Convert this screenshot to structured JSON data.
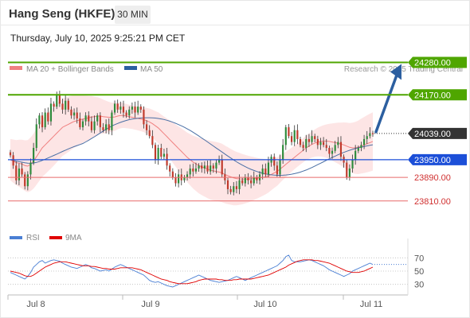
{
  "header": {
    "title": "Hang Seng (HKFE)",
    "timeframe": "30 MIN",
    "datetime": "Thursday, July 10, 2025 9:25:21 PM CET"
  },
  "colors": {
    "candle_up": "#2e8b3b",
    "candle_down": "#c0392b",
    "bollinger_fill": "#fde0e0",
    "ma20": "#f08080",
    "ma50": "#4a6fa5",
    "resistance": "#4fa600",
    "pivot": "#1c4fd8",
    "support": "#e86a6a",
    "current": "#333333",
    "arrow": "#2c5fa0",
    "rsi": "#4a7fd4",
    "rsi_ma": "#e00000"
  },
  "chart_data": {
    "type": "candlestick",
    "legend": [
      {
        "name": "MA 20 + Bollinger Bands",
        "color": "#f08080"
      },
      {
        "name": "MA 50",
        "color": "#2c5fa0"
      }
    ],
    "watermark": "Research © 2025 Trading Central",
    "x_ticks": [
      "Jul 8",
      "Jul 9",
      "Jul 10",
      "Jul 11"
    ],
    "ylim": [
      23750,
      24330
    ],
    "levels": [
      {
        "label": "24280.00",
        "value": 24280,
        "kind": "resistance"
      },
      {
        "label": "24170.00",
        "value": 24170,
        "kind": "resistance"
      },
      {
        "label": "24039.00",
        "value": 24039,
        "kind": "current"
      },
      {
        "label": "23950.00",
        "value": 23950,
        "kind": "pivot"
      },
      {
        "label": "23890.00",
        "value": 23890,
        "kind": "support"
      },
      {
        "label": "23810.00",
        "value": 23810,
        "kind": "support"
      }
    ],
    "close": [
      23965,
      23930,
      23880,
      23920,
      23900,
      23860,
      23900,
      23940,
      23990,
      24070,
      24100,
      24060,
      24110,
      24080,
      24140,
      24130,
      24170,
      24140,
      24120,
      24150,
      24120,
      24100,
      24110,
      24090,
      24060,
      24080,
      24100,
      24080,
      24050,
      24080,
      24100,
      24060,
      24050,
      24070,
      24050,
      24110,
      24140,
      24120,
      24130,
      24110,
      24100,
      24120,
      24130,
      24110,
      24130,
      24120,
      24070,
      24050,
      24030,
      24000,
      23950,
      23990,
      23960,
      23970,
      23930,
      23910,
      23890,
      23870,
      23900,
      23880,
      23890,
      23900,
      23920,
      23910,
      23920,
      23930,
      23920,
      23930,
      23910,
      23930,
      23920,
      23940,
      23950,
      23900,
      23880,
      23850,
      23840,
      23860,
      23850,
      23880,
      23870,
      23890,
      23880,
      23870,
      23890,
      23880,
      23900,
      23920,
      23900,
      23940,
      23960,
      23930,
      23900,
      23950,
      24000,
      24060,
      24030,
      24010,
      24050,
      24020,
      24000,
      23990,
      24020,
      24010,
      24030,
      24020,
      24000,
      24010,
      24000,
      23990,
      23970,
      23980,
      24000,
      24010,
      23960,
      23940,
      23890,
      23920,
      23950,
      23980,
      23990,
      24000,
      24020,
      24030,
      24040,
      24039
    ],
    "ma20": [
      23950,
      23945,
      23940,
      23938,
      23935,
      23930,
      23928,
      23935,
      23945,
      23960,
      23975,
      23990,
      24000,
      24010,
      24020,
      24030,
      24040,
      24050,
      24060,
      24065,
      24070,
      24075,
      24080,
      24082,
      24085,
      24088,
      24090,
      24092,
      24095,
      24096,
      24098,
      24098,
      24096,
      24095,
      24094,
      24094,
      24095,
      24098,
      24100,
      24100,
      24098,
      24096,
      24094,
      24092,
      24090,
      24088,
      24086,
      24082,
      24078,
      24072,
      24065,
      24058,
      24048,
      24038,
      24028,
      24018,
      24008,
      23998,
      23988,
      23978,
      23968,
      23958,
      23950,
      23942,
      23936,
      23930,
      23926,
      23922,
      23918,
      23914,
      23912,
      23910,
      23908,
      23905,
      23900,
      23896,
      23892,
      23888,
      23886,
      23885,
      23884,
      23884,
      23884,
      23885,
      23886,
      23887,
      23888,
      23890,
      23892,
      23895,
      23900,
      23905,
      23910,
      23918,
      23926,
      23934,
      23942,
      23950,
      23958,
      23966,
      23974,
      23982,
      23990,
      23996,
      24002,
      24006,
      24010,
      24012,
      24013,
      24013,
      24012,
      24010,
      24008,
      24006,
      24003,
      24000,
      23996,
      23992,
      23990,
      23990,
      23992,
      23996,
      24000,
      24004,
      24008,
      24012
    ]
  },
  "rsi": {
    "legend": [
      {
        "name": "RSI",
        "color": "#4a7fd4"
      },
      {
        "name": "9MA",
        "color": "#e00000"
      }
    ],
    "ticks": [
      "70",
      "50",
      "30"
    ],
    "ylim": [
      20,
      80
    ],
    "values": [
      48,
      46,
      44,
      42,
      40,
      38,
      42,
      48,
      56,
      60,
      64,
      66,
      62,
      64,
      66,
      67,
      66,
      65,
      62,
      60,
      58,
      56,
      55,
      54,
      56,
      58,
      60,
      58,
      55,
      54,
      52,
      50,
      51,
      52,
      50,
      53,
      56,
      58,
      60,
      58,
      56,
      54,
      52,
      50,
      48,
      46,
      44,
      40,
      36,
      34,
      33,
      34,
      32,
      30,
      28,
      27,
      26,
      28,
      30,
      32,
      34,
      36,
      38,
      40,
      42,
      44,
      42,
      40,
      38,
      36,
      35,
      34,
      33,
      34,
      35,
      36,
      38,
      40,
      42,
      40,
      38,
      36,
      38,
      40,
      42,
      44,
      46,
      48,
      50,
      52,
      54,
      56,
      58,
      62,
      66,
      72,
      74,
      66,
      64,
      64,
      64,
      65,
      66,
      67,
      66,
      64,
      62,
      60,
      58,
      55,
      52,
      50,
      48,
      46,
      44,
      42,
      44,
      46,
      50,
      52,
      54,
      56,
      58,
      60,
      62,
      60
    ],
    "ma": [
      50,
      49,
      48,
      47,
      45,
      43,
      42,
      42,
      44,
      47,
      50,
      53,
      56,
      58,
      60,
      62,
      63,
      64,
      64,
      64,
      63,
      62,
      61,
      60,
      59,
      58,
      58,
      58,
      57,
      57,
      56,
      55,
      54,
      54,
      53,
      53,
      53,
      54,
      55,
      55,
      55,
      55,
      55,
      54,
      53,
      52,
      50,
      48,
      46,
      44,
      42,
      40,
      38,
      37,
      36,
      34,
      33,
      32,
      31,
      31,
      31,
      31,
      32,
      33,
      34,
      36,
      37,
      38,
      38,
      38,
      38,
      38,
      37,
      37,
      36,
      36,
      36,
      37,
      37,
      38,
      38,
      38,
      38,
      38,
      39,
      40,
      41,
      42,
      43,
      44,
      46,
      48,
      50,
      52,
      54,
      56,
      59,
      61,
      63,
      65,
      66,
      67,
      67,
      67,
      67,
      66,
      66,
      65,
      64,
      63,
      62,
      60,
      58,
      56,
      54,
      52,
      50,
      49,
      48,
      48,
      48,
      49,
      50,
      52,
      54,
      56
    ]
  }
}
